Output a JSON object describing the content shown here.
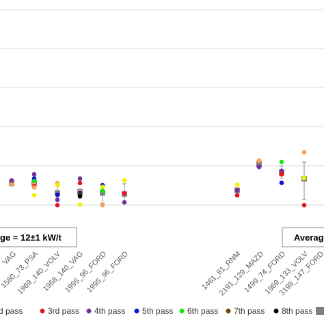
{
  "chart_data": {
    "type": "scatter",
    "categories": [
      "VAG",
      "1560_73_PSA",
      "1969_140_VOLV",
      "1968_140_VAG",
      "1995_96_FORD",
      "1995_96_FORD",
      "1461_81_RNM",
      "2191_129_MAZD",
      "1499_74_FORD",
      "1969_133_VOLV",
      "3198_147_FORD"
    ],
    "y_gridline_count": 6,
    "legend": [
      {
        "name": "d pass",
        "color": "#f4a460"
      },
      {
        "name": "3rd pass",
        "color": "#e8141c"
      },
      {
        "name": "4th pass",
        "color": "#7030a0"
      },
      {
        "name": "5th pass",
        "color": "#0a14d2"
      },
      {
        "name": "6th pass",
        "color": "#14e614"
      },
      {
        "name": "7th pass",
        "color": "#7b3f00"
      },
      {
        "name": "8th pass",
        "color": "#000000"
      },
      {
        "name": "",
        "color": "#808080"
      }
    ],
    "annotations": [
      {
        "text": "ge = 12±1 kW/t"
      },
      {
        "text": "Averag"
      }
    ],
    "points": [
      {
        "cat": 0,
        "y": 0.567,
        "c": "#e8141c"
      },
      {
        "cat": 0,
        "y": 0.57,
        "c": "#14e614"
      },
      {
        "cat": 0,
        "y": 0.553,
        "c": "#f4a460"
      },
      {
        "cat": 0,
        "y": 0.523,
        "c": "#f4a460"
      },
      {
        "cat": 0,
        "y": 0.63,
        "c": "#7030a0"
      },
      {
        "cat": 1,
        "y": 0.787,
        "c": "#7030a0"
      },
      {
        "cat": 1,
        "y": 0.677,
        "c": "#0a14d2"
      },
      {
        "cat": 1,
        "y": 0.61,
        "c": "#14e614"
      },
      {
        "cat": 1,
        "y": 0.52,
        "c": "#f4a460"
      },
      {
        "cat": 1,
        "y": 0.487,
        "c": "#e8141c"
      },
      {
        "cat": 1,
        "y": 0.45,
        "c": "#f4a460"
      },
      {
        "cat": 1,
        "y": 0.253,
        "c": "#f0f000"
      },
      {
        "cat": 2,
        "y": 0.563,
        "c": "#f4a460"
      },
      {
        "cat": 2,
        "y": 0.507,
        "c": "#f0f000"
      },
      {
        "cat": 2,
        "y": 0.263,
        "c": "#0a14d2"
      },
      {
        "cat": 2,
        "y": 0.133,
        "c": "#7030a0"
      },
      {
        "cat": 2,
        "y": -0.003,
        "c": "#e8141c"
      },
      {
        "cat": 3,
        "y": 0.677,
        "c": "#7030a0"
      },
      {
        "cat": 3,
        "y": 0.563,
        "c": "#e8141c"
      },
      {
        "cat": 3,
        "y": 0.337,
        "c": "#f4a460"
      },
      {
        "cat": 3,
        "y": 0.31,
        "c": "#0a14d2"
      },
      {
        "cat": 3,
        "y": 0.263,
        "c": "#7b3f00"
      },
      {
        "cat": 3,
        "y": 0.223,
        "c": "#000000"
      },
      {
        "cat": 3,
        "y": 0.01,
        "c": "#f0f000"
      },
      {
        "cat": 4,
        "y": 0.507,
        "c": "#0a14d2"
      },
      {
        "cat": 4,
        "y": 0.463,
        "c": "#f0f000"
      },
      {
        "cat": 4,
        "y": 0.367,
        "c": "#14e614"
      },
      {
        "cat": 4,
        "y": -0.003,
        "c": "#f4a460"
      },
      {
        "cat": 5,
        "y": 0.633,
        "c": "#f0f000"
      },
      {
        "cat": 5,
        "y": 0.303,
        "c": "#e8141c"
      },
      {
        "cat": 5,
        "y": 0.07,
        "c": "#7030a0"
      },
      {
        "cat": 6,
        "y": 0.52,
        "c": "#f0f000"
      },
      {
        "cat": 6,
        "y": 0.38,
        "c": "#7030a0"
      },
      {
        "cat": 6,
        "y": 0.25,
        "c": "#e8141c"
      },
      {
        "cat": 7,
        "y": 1.133,
        "c": "#e8141c"
      },
      {
        "cat": 7,
        "y": 1.127,
        "c": "#7b3f00"
      },
      {
        "cat": 7,
        "y": 1.13,
        "c": "#f4a460"
      },
      {
        "cat": 7,
        "y": 0.977,
        "c": "#0a14d2"
      },
      {
        "cat": 7,
        "y": 0.977,
        "c": "#7030a0"
      },
      {
        "cat": 8,
        "y": 1.103,
        "c": "#14e614"
      },
      {
        "cat": 8,
        "y": 0.877,
        "c": "#7030a0"
      },
      {
        "cat": 8,
        "y": 0.787,
        "c": "#e8141c"
      },
      {
        "cat": 8,
        "y": 0.567,
        "c": "#0a14d2"
      },
      {
        "cat": 9,
        "y": 1.35,
        "c": "#f4a460"
      },
      {
        "cat": 9,
        "y": 0.693,
        "c": "#f0f000"
      },
      {
        "cat": 9,
        "y": -0.003,
        "c": "#e8141c"
      }
    ],
    "average": [
      {
        "cat": 0,
        "y": 0.56,
        "lo": 0.56,
        "hi": 0.56
      },
      {
        "cat": 1,
        "y": 0.567,
        "lo": 0.47,
        "hi": 0.66
      },
      {
        "cat": 2,
        "y": 0.31,
        "lo": 0.187,
        "hi": 0.52
      },
      {
        "cat": 3,
        "y": 0.333,
        "lo": 0.193,
        "hi": 0.42
      },
      {
        "cat": 4,
        "y": 0.31,
        "lo": 0.05,
        "hi": 0.537
      },
      {
        "cat": 5,
        "y": 0.283,
        "lo": 0.05,
        "hi": 0.543
      },
      {
        "cat": 6,
        "y": 0.377,
        "lo": 0.34,
        "hi": 0.41
      },
      {
        "cat": 7,
        "y": 1.043,
        "lo": 1.043,
        "hi": 1.043
      },
      {
        "cat": 8,
        "y": 0.827,
        "lo": 0.69,
        "hi": 1.0
      },
      {
        "cat": 9,
        "y": 0.673,
        "lo": 0.15,
        "hi": 1.1
      }
    ]
  }
}
